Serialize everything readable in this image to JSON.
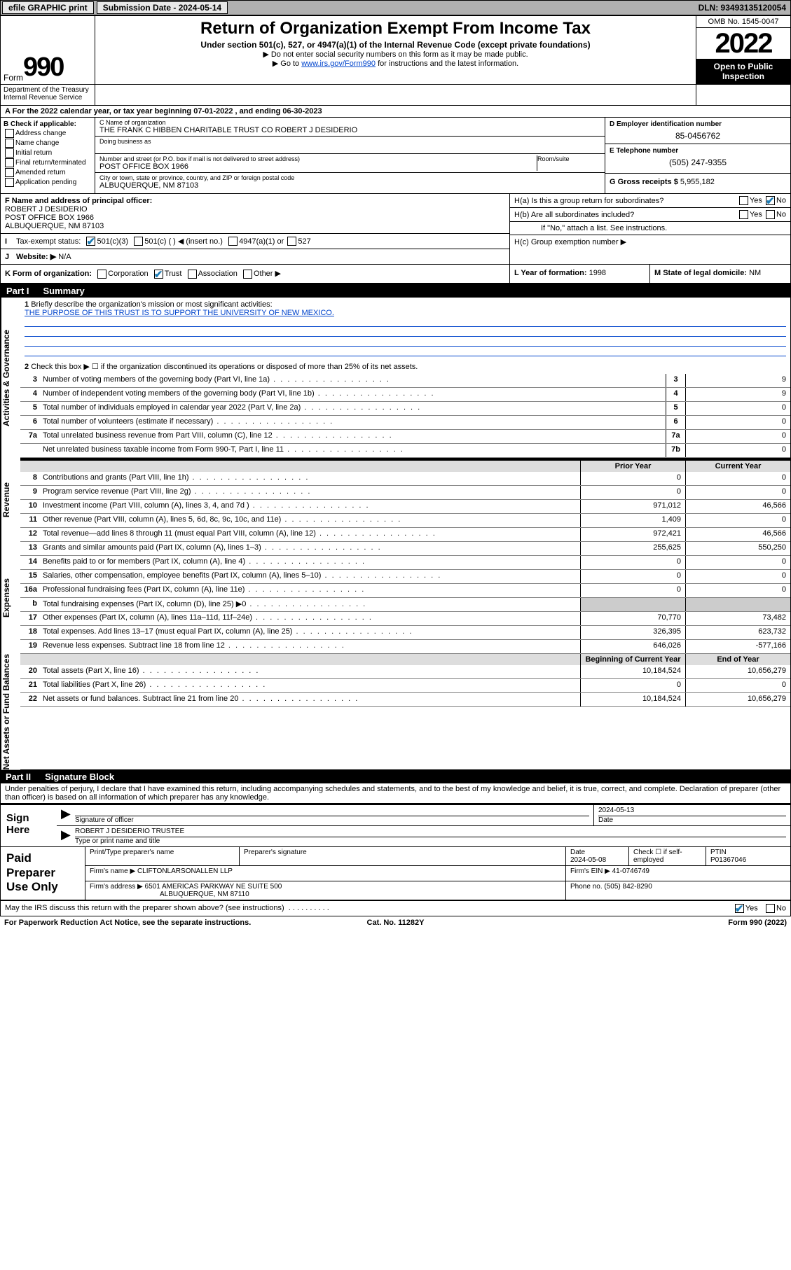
{
  "topbar": {
    "efile": "efile GRAPHIC print",
    "submission_label": "Submission Date - 2024-05-14",
    "dln": "DLN: 93493135120054"
  },
  "header": {
    "form_prefix": "Form",
    "form_num": "990",
    "title": "Return of Organization Exempt From Income Tax",
    "subtitle": "Under section 501(c), 527, or 4947(a)(1) of the Internal Revenue Code (except private foundations)",
    "note1": "▶ Do not enter social security numbers on this form as it may be made public.",
    "note2_pre": "▶ Go to ",
    "note2_link": "www.irs.gov/Form990",
    "note2_post": " for instructions and the latest information.",
    "omb": "OMB No. 1545-0047",
    "year": "2022",
    "inspection": "Open to Public Inspection",
    "dept": "Department of the Treasury Internal Revenue Service"
  },
  "sectionA": "A  For the 2022 calendar year, or tax year beginning 07-01-2022    , and ending 06-30-2023",
  "box_b": {
    "hdr": "B Check if applicable:",
    "items": [
      "Address change",
      "Name change",
      "Initial return",
      "Final return/terminated",
      "Amended return",
      "Application pending"
    ]
  },
  "box_c": {
    "lbl": "C Name of organization",
    "name": "THE FRANK C HIBBEN CHARITABLE TRUST CO ROBERT J DESIDERIO",
    "dba_lbl": "Doing business as",
    "street_lbl": "Number and street (or P.O. box if mail is not delivered to street address)",
    "suite_lbl": "Room/suite",
    "street": "POST OFFICE BOX 1966",
    "city_lbl": "City or town, state or province, country, and ZIP or foreign postal code",
    "city": "ALBUQUERQUE, NM  87103"
  },
  "box_d": {
    "lbl": "D Employer identification number",
    "val": "85-0456762"
  },
  "box_e": {
    "lbl": "E Telephone number",
    "val": "(505) 247-9355"
  },
  "box_g": {
    "lbl": "G Gross receipts $",
    "val": "5,955,182"
  },
  "box_f": {
    "lbl": "F Name and address of principal officer:",
    "name": "ROBERT J DESIDERIO",
    "addr1": "POST OFFICE BOX 1966",
    "addr2": "ALBUQUERQUE, NM  87103"
  },
  "box_h": {
    "a_lbl": "H(a)  Is this a group return for subordinates?",
    "b_lbl": "H(b)  Are all subordinates included?",
    "b_note": "If \"No,\" attach a list. See instructions.",
    "c_lbl": "H(c)  Group exemption number ▶"
  },
  "box_i": {
    "lbl": "Tax-exempt status:",
    "c3": "501(c)(3)",
    "c": "501(c) (  ) ◀ (insert no.)",
    "a1": "4947(a)(1) or",
    "s527": "527"
  },
  "box_j": {
    "lbl": "Website: ▶",
    "val": "N/A"
  },
  "box_k": {
    "lbl": "K Form of organization:",
    "corp": "Corporation",
    "trust": "Trust",
    "assoc": "Association",
    "other": "Other ▶"
  },
  "box_l": {
    "lbl": "L Year of formation:",
    "val": "1998"
  },
  "box_m": {
    "lbl": "M State of legal domicile:",
    "val": "NM"
  },
  "part1": {
    "hdr_num": "Part I",
    "hdr_title": "Summary",
    "q1": "Briefly describe the organization's mission or most significant activities:",
    "q1_text": "THE PURPOSE OF THIS TRUST IS TO SUPPORT THE UNIVERSITY OF NEW MEXICO.",
    "q2": "Check this box ▶ ☐  if the organization discontinued its operations or disposed of more than 25% of its net assets.",
    "side1": "Activities & Governance",
    "side2": "Revenue",
    "side3": "Expenses",
    "side4": "Net Assets or Fund Balances",
    "prior_hdr": "Prior Year",
    "current_hdr": "Current Year",
    "beg_hdr": "Beginning of Current Year",
    "end_hdr": "End of Year",
    "lines_gov": [
      {
        "n": "3",
        "d": "Number of voting members of the governing body (Part VI, line 1a)",
        "b": "3",
        "v": "9"
      },
      {
        "n": "4",
        "d": "Number of independent voting members of the governing body (Part VI, line 1b)",
        "b": "4",
        "v": "9"
      },
      {
        "n": "5",
        "d": "Total number of individuals employed in calendar year 2022 (Part V, line 2a)",
        "b": "5",
        "v": "0"
      },
      {
        "n": "6",
        "d": "Total number of volunteers (estimate if necessary)",
        "b": "6",
        "v": "0"
      },
      {
        "n": "7a",
        "d": "Total unrelated business revenue from Part VIII, column (C), line 12",
        "b": "7a",
        "v": "0"
      },
      {
        "n": "",
        "d": "Net unrelated business taxable income from Form 990-T, Part I, line 11",
        "b": "7b",
        "v": "0"
      }
    ],
    "lines_rev": [
      {
        "n": "8",
        "d": "Contributions and grants (Part VIII, line 1h)",
        "p": "0",
        "c": "0"
      },
      {
        "n": "9",
        "d": "Program service revenue (Part VIII, line 2g)",
        "p": "0",
        "c": "0"
      },
      {
        "n": "10",
        "d": "Investment income (Part VIII, column (A), lines 3, 4, and 7d )",
        "p": "971,012",
        "c": "46,566"
      },
      {
        "n": "11",
        "d": "Other revenue (Part VIII, column (A), lines 5, 6d, 8c, 9c, 10c, and 11e)",
        "p": "1,409",
        "c": "0"
      },
      {
        "n": "12",
        "d": "Total revenue—add lines 8 through 11 (must equal Part VIII, column (A), line 12)",
        "p": "972,421",
        "c": "46,566"
      }
    ],
    "lines_exp": [
      {
        "n": "13",
        "d": "Grants and similar amounts paid (Part IX, column (A), lines 1–3)",
        "p": "255,625",
        "c": "550,250"
      },
      {
        "n": "14",
        "d": "Benefits paid to or for members (Part IX, column (A), line 4)",
        "p": "0",
        "c": "0"
      },
      {
        "n": "15",
        "d": "Salaries, other compensation, employee benefits (Part IX, column (A), lines 5–10)",
        "p": "0",
        "c": "0"
      },
      {
        "n": "16a",
        "d": "Professional fundraising fees (Part IX, column (A), line 11e)",
        "p": "0",
        "c": "0"
      },
      {
        "n": "b",
        "d": "Total fundraising expenses (Part IX, column (D), line 25) ▶0",
        "p": "",
        "c": "",
        "gray": true
      },
      {
        "n": "17",
        "d": "Other expenses (Part IX, column (A), lines 11a–11d, 11f–24e)",
        "p": "70,770",
        "c": "73,482"
      },
      {
        "n": "18",
        "d": "Total expenses. Add lines 13–17 (must equal Part IX, column (A), line 25)",
        "p": "326,395",
        "c": "623,732"
      },
      {
        "n": "19",
        "d": "Revenue less expenses. Subtract line 18 from line 12",
        "p": "646,026",
        "c": "-577,166"
      }
    ],
    "lines_net": [
      {
        "n": "20",
        "d": "Total assets (Part X, line 16)",
        "p": "10,184,524",
        "c": "10,656,279"
      },
      {
        "n": "21",
        "d": "Total liabilities (Part X, line 26)",
        "p": "0",
        "c": "0"
      },
      {
        "n": "22",
        "d": "Net assets or fund balances. Subtract line 21 from line 20",
        "p": "10,184,524",
        "c": "10,656,279"
      }
    ]
  },
  "part2": {
    "hdr_num": "Part II",
    "hdr_title": "Signature Block",
    "decl": "Under penalties of perjury, I declare that I have examined this return, including accompanying schedules and statements, and to the best of my knowledge and belief, it is true, correct, and complete. Declaration of preparer (other than officer) is based on all information of which preparer has any knowledge.",
    "sign_here": "Sign Here",
    "sig_of": "Signature of officer",
    "sig_date": "2024-05-13",
    "date_lbl": "Date",
    "name": "ROBERT J DESIDERIO  TRUSTEE",
    "name_lbl": "Type or print name and title",
    "paid": "Paid Preparer Use Only",
    "prep_name_lbl": "Print/Type preparer's name",
    "prep_sig_lbl": "Preparer's signature",
    "prep_date_lbl": "Date",
    "prep_date": "2024-05-08",
    "check_lbl": "Check ☐ if self-employed",
    "ptin_lbl": "PTIN",
    "ptin": "P01367046",
    "firm_name_lbl": "Firm's name   ▶",
    "firm_name": "CLIFTONLARSONALLEN LLP",
    "ein_lbl": "Firm's EIN ▶",
    "ein": "41-0746749",
    "firm_addr_lbl": "Firm's address ▶",
    "firm_addr": "6501 AMERICAS PARKWAY NE SUITE 500",
    "firm_addr2": "ALBUQUERQUE, NM  87110",
    "phone_lbl": "Phone no.",
    "phone": "(505) 842-8290",
    "discuss": "May the IRS discuss this return with the preparer shown above? (see instructions)",
    "yes": "Yes",
    "no": "No"
  },
  "footer": {
    "l": "For Paperwork Reduction Act Notice, see the separate instructions.",
    "c": "Cat. No. 11282Y",
    "r": "Form 990 (2022)"
  }
}
